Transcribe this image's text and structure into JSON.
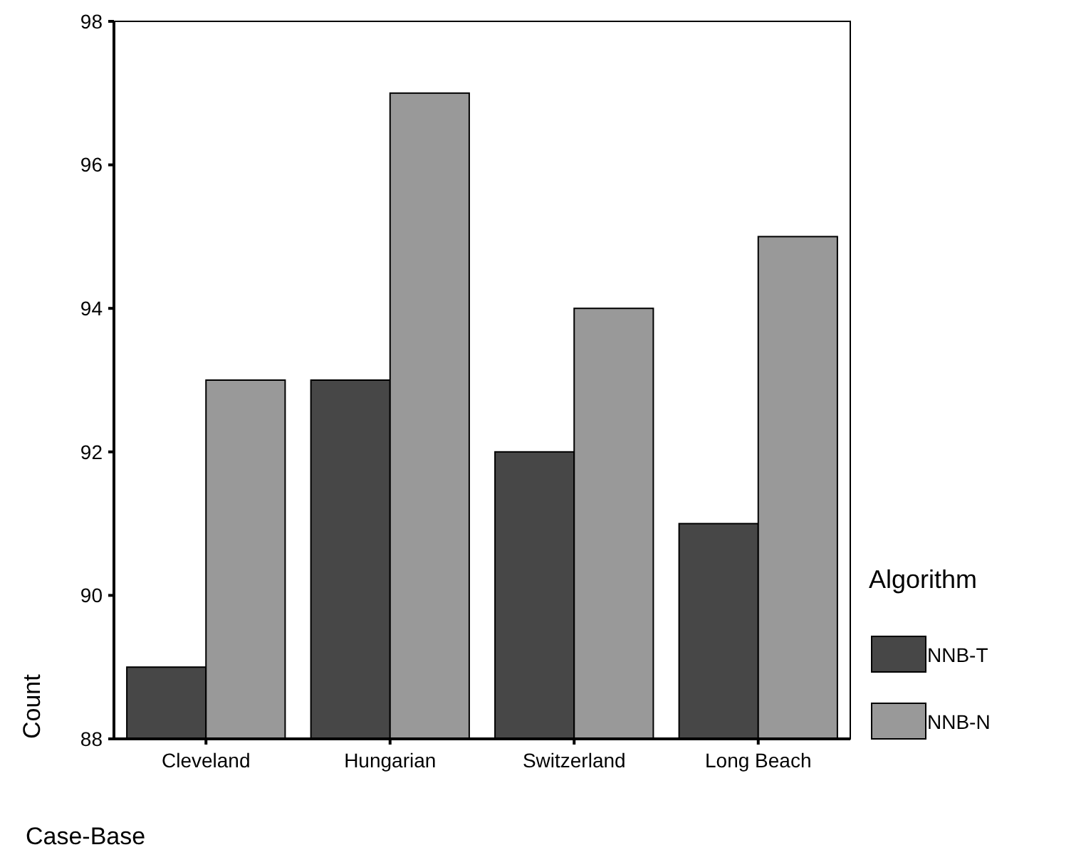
{
  "chart_data": {
    "type": "bar",
    "xlabel": "Case-Base",
    "ylabel": "Count",
    "legend_title": "Algorithm",
    "categories": [
      "Cleveland",
      "Hungarian",
      "Switzerland",
      "Long Beach"
    ],
    "series": [
      {
        "name": "NNB-T",
        "color": "#474747",
        "values": [
          89,
          93,
          92,
          91
        ]
      },
      {
        "name": "NNB-N",
        "color": "#999999",
        "values": [
          93,
          97,
          94,
          95
        ]
      }
    ],
    "ylim": [
      88,
      98
    ],
    "yticks": [
      88,
      90,
      92,
      94,
      96,
      98
    ],
    "grid": false,
    "legend": "right"
  }
}
